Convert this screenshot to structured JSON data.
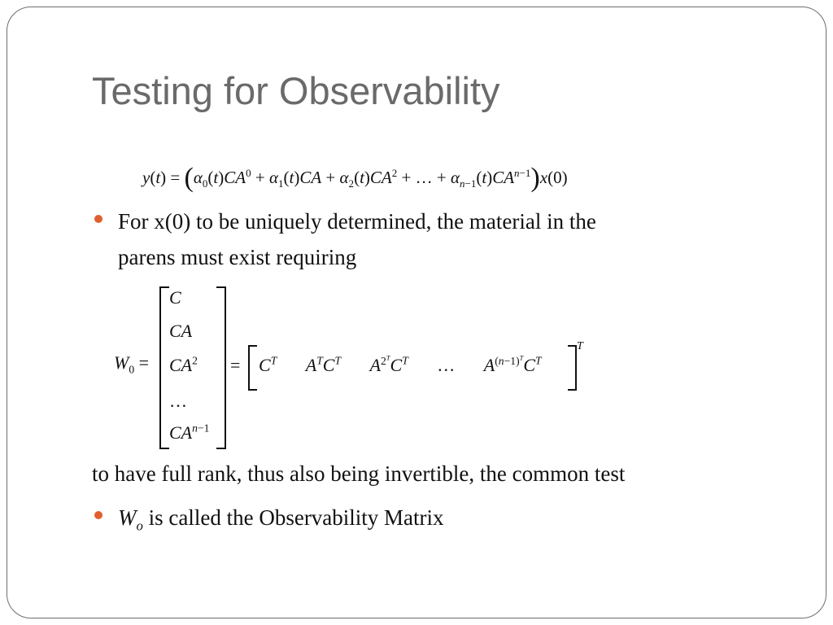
{
  "slide": {
    "title": "Testing for Observability",
    "equation_1": "y(t) = (α0(t)CA^0 + α1(t)CA + α2(t)CA^2 + … + αn−1(t)CA^(n−1)) x(0)",
    "bullet_1_line_1": "For x(0) to be uniquely determined, the material in the",
    "bullet_1_line_2": "parens must exist requiring",
    "equation_2": "W0 = [C; CA; CA^2; …; CA^(n−1)] = [C^T  A^T C^T  A^(2^T) C^T  …  A^((n−1)^T) C^T]^T",
    "paragraph": "to have full rank, thus also being invertible, the common test",
    "bullet_2_symbol": "W",
    "bullet_2_symbol_sub": "o",
    "bullet_2_text": " is called the Observability Matrix",
    "accent_color": "#e06030",
    "title_color": "#6a6a6a"
  }
}
